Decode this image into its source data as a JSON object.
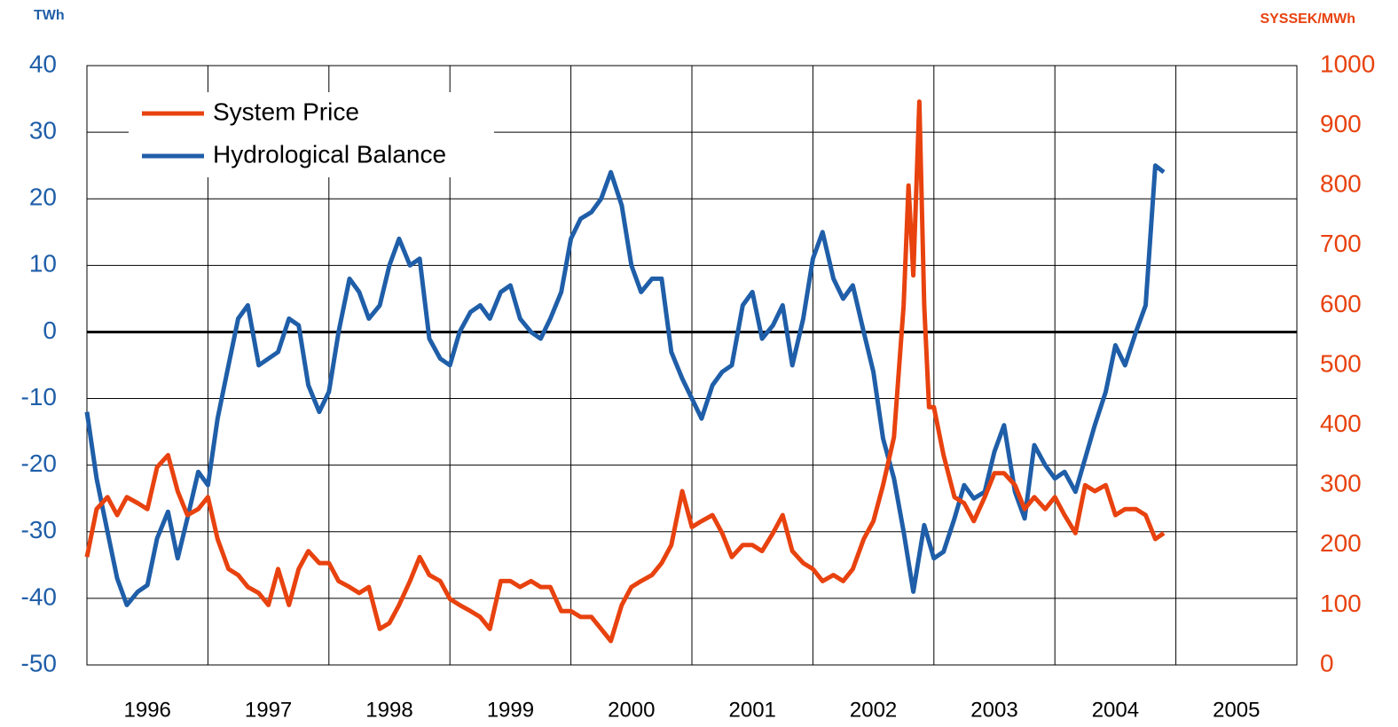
{
  "chart_data": {
    "type": "line",
    "y_label": "TWh",
    "y2_label": "SYSSEK/MWh",
    "xlim": [
      1996,
      2006
    ],
    "xticks": [
      {
        "value": 1996.5,
        "label": "1996"
      },
      {
        "value": 1997.5,
        "label": "1997"
      },
      {
        "value": 1998.5,
        "label": "1998"
      },
      {
        "value": 1999.5,
        "label": "1999"
      },
      {
        "value": 2000.5,
        "label": "2000"
      },
      {
        "value": 2001.5,
        "label": "2001"
      },
      {
        "value": 2002.5,
        "label": "2002"
      },
      {
        "value": 2003.5,
        "label": "2003"
      },
      {
        "value": 2004.5,
        "label": "2004"
      },
      {
        "value": 2005.5,
        "label": "2005"
      }
    ],
    "xgrid": [
      1997,
      1998,
      1999,
      2000,
      2001,
      2002,
      2003,
      2004,
      2005
    ],
    "ylim": [
      -50,
      40
    ],
    "yticks": [
      -50,
      -40,
      -30,
      -20,
      -10,
      0,
      10,
      20,
      30,
      40
    ],
    "y2lim": [
      0,
      1000
    ],
    "y2ticks": [
      0,
      100,
      200,
      300,
      400,
      500,
      600,
      700,
      800,
      900,
      1000
    ],
    "grid": true,
    "legend": "upper left",
    "series": [
      {
        "name": "System Price",
        "color": "#e8420f",
        "axis": "y2",
        "x": [
          1996,
          1996.08,
          1996.17,
          1996.25,
          1996.33,
          1996.42,
          1996.5,
          1996.58,
          1996.67,
          1996.75,
          1996.83,
          1996.92,
          1997,
          1997.08,
          1997.17,
          1997.25,
          1997.33,
          1997.42,
          1997.5,
          1997.58,
          1997.67,
          1997.75,
          1997.83,
          1997.92,
          1998,
          1998.08,
          1998.17,
          1998.25,
          1998.33,
          1998.42,
          1998.5,
          1998.58,
          1998.67,
          1998.75,
          1998.83,
          1998.92,
          1999,
          1999.08,
          1999.17,
          1999.25,
          1999.33,
          1999.42,
          1999.5,
          1999.58,
          1999.67,
          1999.75,
          1999.83,
          1999.92,
          2000,
          2000.08,
          2000.17,
          2000.25,
          2000.33,
          2000.42,
          2000.5,
          2000.58,
          2000.67,
          2000.75,
          2000.83,
          2000.92,
          2001,
          2001.08,
          2001.17,
          2001.25,
          2001.33,
          2001.42,
          2001.5,
          2001.58,
          2001.67,
          2001.75,
          2001.83,
          2001.92,
          2002,
          2002.08,
          2002.17,
          2002.25,
          2002.33,
          2002.42,
          2002.5,
          2002.58,
          2002.67,
          2002.75,
          2002.79,
          2002.83,
          2002.88,
          2002.92,
          2002.96,
          2003,
          2003.08,
          2003.17,
          2003.25,
          2003.33,
          2003.42,
          2003.5,
          2003.58,
          2003.67,
          2003.75,
          2003.83,
          2003.92,
          2004,
          2004.08,
          2004.17,
          2004.25,
          2004.33,
          2004.42,
          2004.5,
          2004.58,
          2004.67,
          2004.75,
          2004.83,
          2004.9
        ],
        "values": [
          180,
          260,
          280,
          250,
          280,
          270,
          260,
          330,
          350,
          290,
          250,
          260,
          280,
          210,
          160,
          150,
          130,
          120,
          100,
          160,
          100,
          160,
          190,
          170,
          170,
          140,
          130,
          120,
          130,
          60,
          70,
          100,
          140,
          180,
          150,
          140,
          110,
          100,
          90,
          80,
          60,
          140,
          140,
          130,
          140,
          130,
          130,
          90,
          90,
          80,
          80,
          60,
          40,
          100,
          130,
          140,
          150,
          170,
          200,
          290,
          230,
          240,
          250,
          220,
          180,
          200,
          200,
          190,
          220,
          250,
          190,
          170,
          160,
          140,
          150,
          140,
          160,
          210,
          240,
          300,
          380,
          600,
          800,
          650,
          940,
          600,
          430,
          430,
          350,
          280,
          270,
          240,
          280,
          320,
          320,
          300,
          260,
          280,
          260,
          280,
          250,
          220,
          300,
          290,
          300,
          250,
          260,
          260,
          250,
          210,
          220
        ]
      },
      {
        "name": "Hydrological Balance",
        "color": "#1f5ea8",
        "x": [
          1996,
          1996.08,
          1996.17,
          1996.25,
          1996.33,
          1996.42,
          1996.5,
          1996.58,
          1996.67,
          1996.75,
          1996.83,
          1996.92,
          1997,
          1997.08,
          1997.17,
          1997.25,
          1997.33,
          1997.42,
          1997.5,
          1997.58,
          1997.67,
          1997.75,
          1997.83,
          1997.92,
          1998,
          1998.08,
          1998.17,
          1998.25,
          1998.33,
          1998.42,
          1998.5,
          1998.58,
          1998.67,
          1998.75,
          1998.83,
          1998.92,
          1999,
          1999.08,
          1999.17,
          1999.25,
          1999.33,
          1999.42,
          1999.5,
          1999.58,
          1999.67,
          1999.75,
          1999.83,
          1999.92,
          2000,
          2000.08,
          2000.17,
          2000.25,
          2000.33,
          2000.42,
          2000.5,
          2000.58,
          2000.67,
          2000.75,
          2000.83,
          2000.92,
          2001,
          2001.08,
          2001.17,
          2001.25,
          2001.33,
          2001.42,
          2001.5,
          2001.58,
          2001.67,
          2001.75,
          2001.83,
          2001.92,
          2002,
          2002.08,
          2002.17,
          2002.25,
          2002.33,
          2002.42,
          2002.5,
          2002.58,
          2002.67,
          2002.75,
          2002.83,
          2002.92,
          2003,
          2003.08,
          2003.17,
          2003.25,
          2003.33,
          2003.42,
          2003.5,
          2003.58,
          2003.67,
          2003.75,
          2003.83,
          2003.92,
          2004,
          2004.08,
          2004.17,
          2004.25,
          2004.33,
          2004.42,
          2004.5,
          2004.58,
          2004.67,
          2004.75,
          2004.83,
          2004.9
        ],
        "values": [
          -12,
          -22,
          -30,
          -37,
          -41,
          -39,
          -38,
          -31,
          -27,
          -34,
          -28,
          -21,
          -23,
          -13,
          -5,
          2,
          4,
          -5,
          -4,
          -3,
          2,
          1,
          -8,
          -12,
          -9,
          0,
          8,
          6,
          2,
          4,
          10,
          14,
          10,
          11,
          -1,
          -4,
          -5,
          0,
          3,
          4,
          2,
          6,
          7,
          2,
          0,
          -1,
          2,
          6,
          14,
          17,
          18,
          20,
          24,
          19,
          10,
          6,
          8,
          8,
          -3,
          -7,
          -10,
          -13,
          -8,
          -6,
          -5,
          4,
          6,
          -1,
          1,
          4,
          -5,
          2,
          11,
          15,
          8,
          5,
          7,
          0,
          -6,
          -16,
          -22,
          -30,
          -39,
          -29,
          -34,
          -33,
          -28,
          -23,
          -25,
          -24,
          -18,
          -14,
          -24,
          -28,
          -17,
          -20,
          -22,
          -21,
          -24,
          -19,
          -14,
          -9,
          -2,
          -5,
          0,
          4,
          25,
          24
        ]
      }
    ]
  }
}
